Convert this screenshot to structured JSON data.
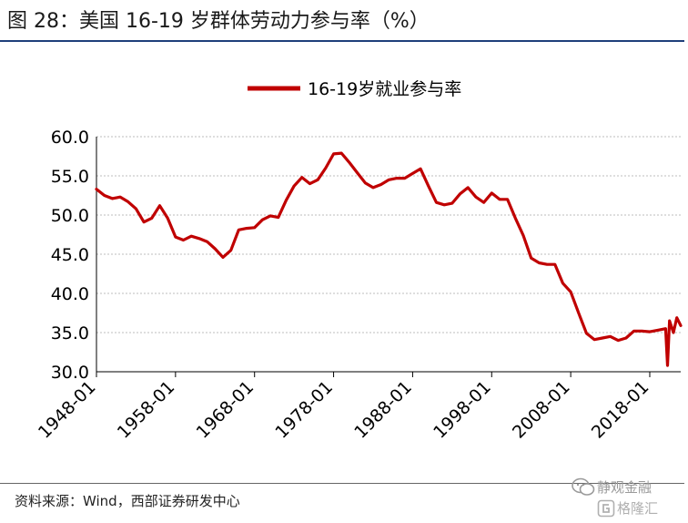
{
  "figure": {
    "title": "图 28：美国 16-19 岁群体劳动力参与率（%）",
    "source": "资料来源：Wind，西部证券研发中心",
    "watermark_top": "静观金融",
    "watermark_bottom": "格隆汇"
  },
  "colors": {
    "series": "#c00000",
    "title_rule": "#1f3f7a",
    "grid": "#bdbdbd",
    "axis": "#000000"
  },
  "chart_data": {
    "type": "line",
    "title": "",
    "xlabel": "",
    "ylabel": "",
    "ylim": [
      30,
      60
    ],
    "yticks": [
      30,
      35,
      40,
      45,
      50,
      55,
      60
    ],
    "ytick_labels": [
      "30.0",
      "35.0",
      "40.0",
      "45.0",
      "50.0",
      "55.0",
      "60.0"
    ],
    "xlim": [
      "1948-01",
      "2021-12"
    ],
    "xtick_labels": [
      "1948-01",
      "1958-01",
      "1968-01",
      "1978-01",
      "1988-01",
      "1998-01",
      "2008-01",
      "2018-01"
    ],
    "grid": "horizontal dotted",
    "legend_position": "top-center",
    "series": [
      {
        "name": "16-19岁就业参与率",
        "x": [
          "1948-01",
          "1949-01",
          "1950-01",
          "1951-01",
          "1952-01",
          "1953-01",
          "1954-01",
          "1955-01",
          "1956-01",
          "1957-01",
          "1958-01",
          "1959-01",
          "1960-01",
          "1961-01",
          "1962-01",
          "1963-01",
          "1964-01",
          "1965-01",
          "1966-01",
          "1967-01",
          "1968-01",
          "1969-01",
          "1970-01",
          "1971-01",
          "1972-01",
          "1973-01",
          "1974-01",
          "1975-01",
          "1976-01",
          "1977-01",
          "1978-01",
          "1979-01",
          "1980-01",
          "1981-01",
          "1982-01",
          "1983-01",
          "1984-01",
          "1985-01",
          "1986-01",
          "1987-01",
          "1988-01",
          "1989-01",
          "1990-01",
          "1991-01",
          "1992-01",
          "1993-01",
          "1994-01",
          "1995-01",
          "1996-01",
          "1997-01",
          "1998-01",
          "1999-01",
          "2000-01",
          "2001-01",
          "2002-01",
          "2003-01",
          "2004-01",
          "2005-01",
          "2006-01",
          "2007-01",
          "2008-01",
          "2009-01",
          "2010-01",
          "2011-01",
          "2012-01",
          "2013-01",
          "2014-01",
          "2015-01",
          "2016-01",
          "2017-01",
          "2018-01",
          "2019-01",
          "2020-01",
          "2020-04",
          "2020-07",
          "2021-01",
          "2021-06",
          "2021-12"
        ],
        "y": [
          53.3,
          52.5,
          52.1,
          52.3,
          51.7,
          50.8,
          49.1,
          49.6,
          51.2,
          49.6,
          47.2,
          46.8,
          47.3,
          47.0,
          46.6,
          45.7,
          44.6,
          45.5,
          48.1,
          48.3,
          48.4,
          49.4,
          49.9,
          49.7,
          51.9,
          53.7,
          54.8,
          54.0,
          54.5,
          56.0,
          57.8,
          57.9,
          56.7,
          55.4,
          54.1,
          53.5,
          53.9,
          54.5,
          54.7,
          54.7,
          55.3,
          55.9,
          53.7,
          51.6,
          51.3,
          51.5,
          52.7,
          53.5,
          52.3,
          51.6,
          52.8,
          52.0,
          52.0,
          49.6,
          47.4,
          44.5,
          43.9,
          43.7,
          43.7,
          41.3,
          40.2,
          37.5,
          34.9,
          34.1,
          34.3,
          34.5,
          34.0,
          34.3,
          35.2,
          35.2,
          35.1,
          35.3,
          35.5,
          30.8,
          36.5,
          35.0,
          36.9,
          35.9
        ]
      }
    ]
  }
}
